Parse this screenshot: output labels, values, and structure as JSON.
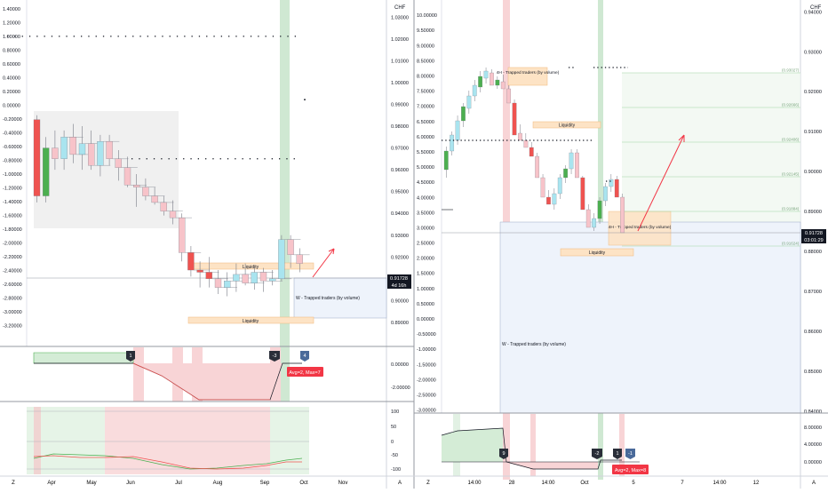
{
  "colors": {
    "bull": "#4caf50",
    "bear": "#ef5350",
    "ghost_bull": "#a9e4ef",
    "ghost_bear": "#f7c3c9",
    "liquidity_fill": "#fde3c5",
    "liquidity_stroke": "#f0b77a",
    "trap_fill": "#eef3fb",
    "trap_stroke": "#9aa9c6",
    "green_band": "#cfe8d2",
    "red_band": "#f8d4d6",
    "price_label_bg": "#131722",
    "avg_badge_bg": "#f23645",
    "axis_text": "#131722"
  },
  "left_panel": {
    "currency": "CHF",
    "price_label": "0.91728",
    "timer_label": "4d 16h",
    "liquidity_label": "Liquidity",
    "trapped_label": "W - Trapped traders (by volume)",
    "avg_badge": "Avg=2, Max=7",
    "markers": [
      "1",
      "-3",
      "4"
    ],
    "x_labels": [
      "Z",
      "Apr",
      "May",
      "Jun",
      "Jul",
      "Aug",
      "Sep",
      "Oct",
      "Nov",
      "A"
    ],
    "osc_ticks": [
      "0.00000",
      "-2.00000"
    ],
    "rsi_ticks": [
      "100",
      "50",
      "0",
      "-50",
      "-100"
    ]
  },
  "right_panel": {
    "currency": "CHF",
    "price_label": "0.91728",
    "timer_label": "03:01:29",
    "liquidity_label": "Liquidity",
    "trapped_4h_label": "4H - Trapped traders (by volume)",
    "trapped_w_label": "W - Trapped traders (by volume)",
    "avg_badge": "Avg=2, Max=8",
    "markers": [
      "9",
      "-2",
      "1",
      "-1"
    ],
    "fib_labels": [
      "(0.93027)",
      "(0.92666)",
      "(0.92406)",
      "(0.92145)",
      "(0.91884)",
      "(0.91624)"
    ],
    "x_labels": [
      "Z",
      "14:00",
      "28",
      "14:00",
      "Oct",
      "5",
      "7",
      "14:00",
      "12",
      "A"
    ],
    "osc_ticks": [
      "8.00000",
      "4.00000",
      "0.00000"
    ]
  },
  "chart_data": [
    {
      "type": "candlestick",
      "title": "",
      "timeframe_note": "weekly",
      "y_axis_left": {
        "ticks": [
          "1.40000",
          "1.20000",
          "1.00000",
          "0.80000",
          "0.60000",
          "0.40000",
          "0.20000",
          "0.00000",
          "-0.20000",
          "-0.40000",
          "-0.60000",
          "-0.80000",
          "-1.00000",
          "-1.20000",
          "-1.40000",
          "-1.60000",
          "-1.80000",
          "-2.00000",
          "-2.20000",
          "-2.40000",
          "-2.60000",
          "-2.80000",
          "-3.00000",
          "-3.20000"
        ],
        "range": [
          -3.3,
          1.45
        ]
      },
      "y_axis_right": {
        "ticks": [
          "1.03000",
          "1.02000",
          "1.01000",
          "1.00000",
          "0.99000",
          "0.98000",
          "0.97000",
          "0.96000",
          "0.95000",
          "0.94000",
          "0.93000",
          "0.92000",
          "0.91000",
          "0.90000",
          "0.89000"
        ],
        "range": [
          0.8855,
          1.0354
        ]
      },
      "x_categories": [
        "Apr",
        "May",
        "Jun",
        "Jul",
        "Aug",
        "Sep",
        "Oct",
        "Nov"
      ],
      "candles": [
        {
          "o": 0.983,
          "h": 0.985,
          "l": 0.945,
          "c": 0.948
        },
        {
          "o": 0.948,
          "h": 0.975,
          "l": 0.945,
          "c": 0.97
        },
        {
          "o": 0.97,
          "h": 0.978,
          "l": 0.96,
          "c": 0.965
        },
        {
          "o": 0.965,
          "h": 0.978,
          "l": 0.96,
          "c": 0.975
        },
        {
          "o": 0.975,
          "h": 0.981,
          "l": 0.963,
          "c": 0.967
        },
        {
          "o": 0.967,
          "h": 0.98,
          "l": 0.96,
          "c": 0.972
        },
        {
          "o": 0.972,
          "h": 0.978,
          "l": 0.96,
          "c": 0.962
        },
        {
          "o": 0.962,
          "h": 0.976,
          "l": 0.957,
          "c": 0.973
        },
        {
          "o": 0.973,
          "h": 0.976,
          "l": 0.962,
          "c": 0.965
        },
        {
          "o": 0.965,
          "h": 0.969,
          "l": 0.955,
          "c": 0.961
        },
        {
          "o": 0.961,
          "h": 0.966,
          "l": 0.952,
          "c": 0.953
        },
        {
          "o": 0.953,
          "h": 0.958,
          "l": 0.943,
          "c": 0.952
        },
        {
          "o": 0.952,
          "h": 0.956,
          "l": 0.946,
          "c": 0.948
        },
        {
          "o": 0.948,
          "h": 0.952,
          "l": 0.944,
          "c": 0.945
        },
        {
          "o": 0.945,
          "h": 0.948,
          "l": 0.939,
          "c": 0.941
        },
        {
          "o": 0.941,
          "h": 0.946,
          "l": 0.935,
          "c": 0.938
        },
        {
          "o": 0.938,
          "h": 0.94,
          "l": 0.918,
          "c": 0.922
        },
        {
          "o": 0.922,
          "h": 0.925,
          "l": 0.911,
          "c": 0.914
        },
        {
          "o": 0.914,
          "h": 0.918,
          "l": 0.906,
          "c": 0.913
        },
        {
          "o": 0.913,
          "h": 0.92,
          "l": 0.906,
          "c": 0.91
        },
        {
          "o": 0.91,
          "h": 0.914,
          "l": 0.903,
          "c": 0.906
        },
        {
          "o": 0.906,
          "h": 0.913,
          "l": 0.902,
          "c": 0.909
        },
        {
          "o": 0.909,
          "h": 0.917,
          "l": 0.904,
          "c": 0.912
        },
        {
          "o": 0.912,
          "h": 0.917,
          "l": 0.907,
          "c": 0.908
        },
        {
          "o": 0.908,
          "h": 0.915,
          "l": 0.905,
          "c": 0.913
        },
        {
          "o": 0.913,
          "h": 0.915,
          "l": 0.904,
          "c": 0.909
        },
        {
          "o": 0.909,
          "h": 0.914,
          "l": 0.907,
          "c": 0.91
        },
        {
          "o": 0.91,
          "h": 0.93,
          "l": 0.909,
          "c": 0.928
        },
        {
          "o": 0.928,
          "h": 0.93,
          "l": 0.915,
          "c": 0.921
        },
        {
          "o": 0.921,
          "h": 0.924,
          "l": 0.913,
          "c": 0.917
        }
      ],
      "levels": [
        1.0,
        0.928,
        -1.0
      ]
    },
    {
      "type": "candlestick",
      "title": "",
      "timeframe_note": "4h",
      "y_axis_left": {
        "ticks": [
          "10.00000",
          "9.50000",
          "9.00000",
          "8.50000",
          "8.00000",
          "7.50000",
          "7.00000",
          "6.50000",
          "6.00000",
          "5.50000",
          "5.00000",
          "4.50000",
          "4.00000",
          "3.50000",
          "3.00000",
          "2.50000",
          "2.00000",
          "1.50000",
          "1.00000",
          "0.50000",
          "0.00000",
          "-0.50000",
          "-1.00000",
          "-1.50000",
          "-2.00000",
          "-2.50000",
          "-3.00000"
        ],
        "range": [
          -3.1,
          10.15
        ]
      },
      "y_axis_right": {
        "ticks": [
          "0.94000",
          "0.93000",
          "0.92000",
          "0.91000",
          "0.90000",
          "0.89000",
          "0.88000",
          "0.87000",
          "0.86000",
          "0.85000",
          "0.84000"
        ],
        "range": [
          0.8395,
          0.9403
        ]
      },
      "fib_levels": [
        0.93027,
        0.92666,
        0.92406,
        0.92145,
        0.91884,
        0.91624
      ],
      "x_categories": [
        "14:00",
        "28",
        "14:00",
        "Oct",
        "5",
        "7",
        "14:00",
        "12"
      ]
    }
  ]
}
